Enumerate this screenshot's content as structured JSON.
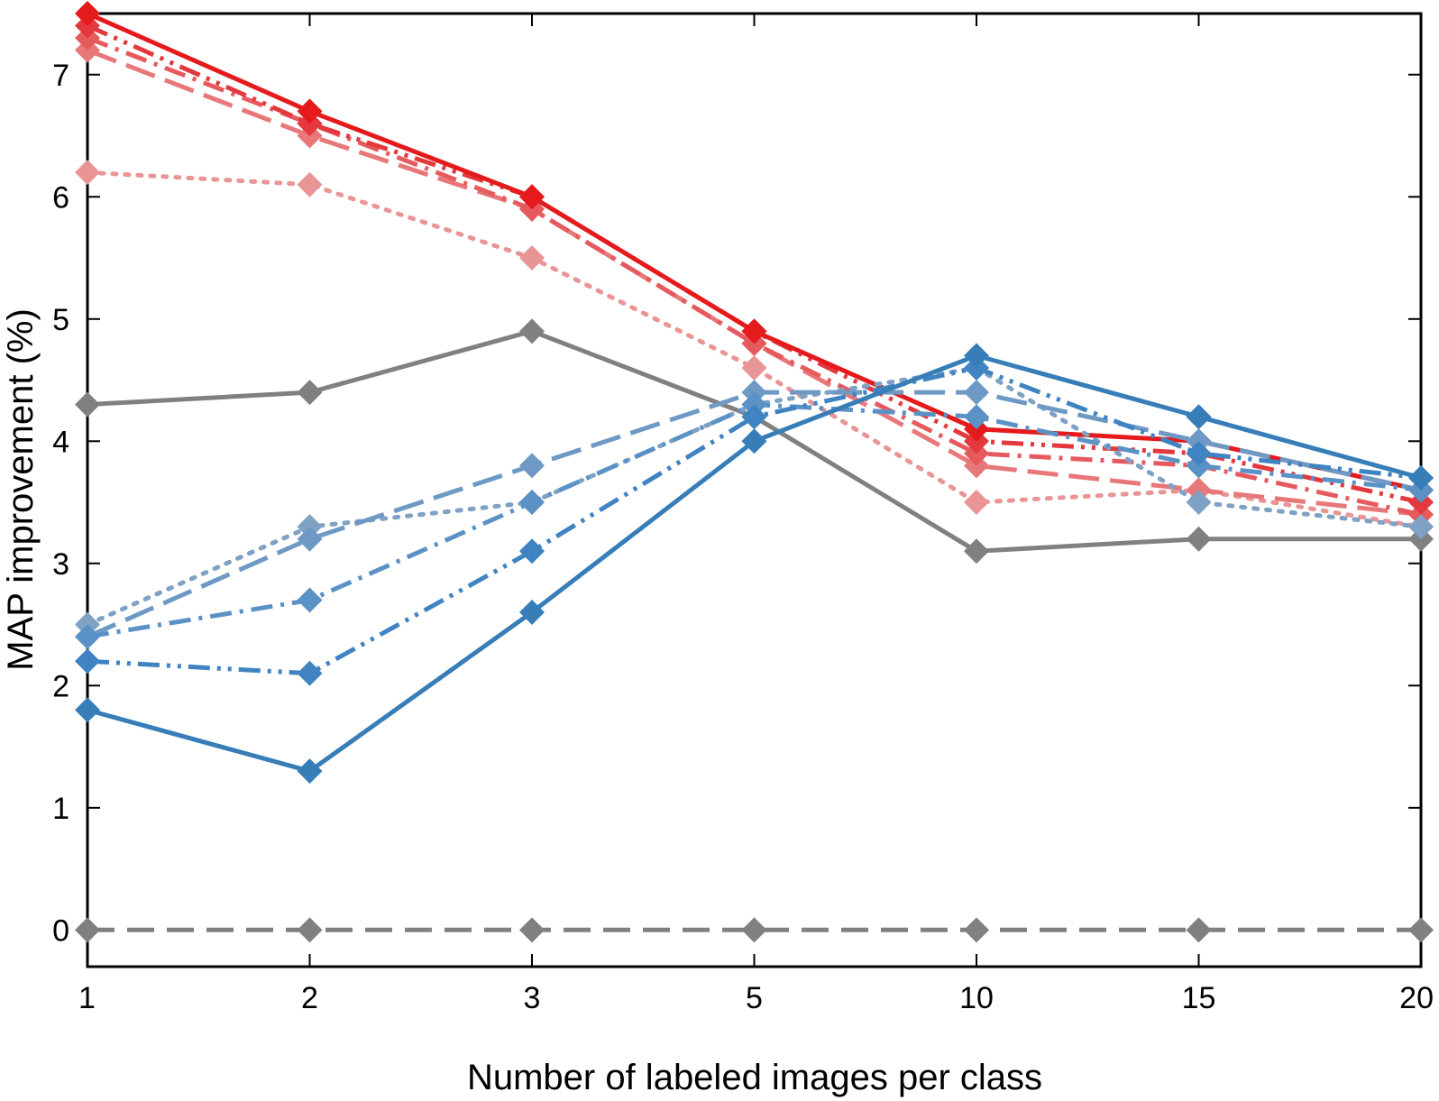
{
  "chart_data": {
    "type": "line",
    "title": "",
    "xlabel": "Number of labeled images per class",
    "ylabel": "MAP improvement (%)",
    "categories": [
      "1",
      "2",
      "3",
      "5",
      "10",
      "15",
      "20"
    ],
    "ylim": [
      -0.3,
      7.5
    ],
    "yticks": [
      0,
      1,
      2,
      3,
      4,
      5,
      6,
      7
    ],
    "grid": false,
    "legend": "none",
    "marker": "diamond",
    "series": [
      {
        "name": "gray solid",
        "color": "#808080",
        "dash": "solid",
        "values": [
          4.3,
          4.4,
          4.9,
          4.2,
          3.1,
          3.2,
          3.2
        ]
      },
      {
        "name": "gray dashed baseline",
        "color": "#808080",
        "dash": "dash",
        "values": [
          0,
          0,
          0,
          0,
          0,
          0,
          0
        ]
      },
      {
        "name": "red dotted",
        "color": "#E99595",
        "dash": "dot",
        "values": [
          6.2,
          6.1,
          5.5,
          4.6,
          3.5,
          3.6,
          3.3
        ]
      },
      {
        "name": "red long-dash light",
        "color": "#E8777A",
        "dash": "longdash",
        "values": [
          7.2,
          6.5,
          5.9,
          4.8,
          3.8,
          3.6,
          3.4
        ]
      },
      {
        "name": "red dash-dot",
        "color": "#E65A5E",
        "dash": "dashdot",
        "values": [
          7.3,
          6.6,
          5.9,
          4.8,
          3.9,
          3.8,
          3.4
        ]
      },
      {
        "name": "red dash-dot-dot",
        "color": "#E3383D",
        "dash": "dashdotdot",
        "values": [
          7.4,
          6.6,
          6.0,
          4.9,
          4.0,
          3.9,
          3.5
        ]
      },
      {
        "name": "red solid",
        "color": "#E41A1C",
        "dash": "solid",
        "values": [
          7.5,
          6.7,
          6.0,
          4.9,
          4.1,
          4.0,
          3.6
        ]
      },
      {
        "name": "blue dotted",
        "color": "#7FA1C4",
        "dash": "dot",
        "values": [
          2.5,
          3.3,
          3.5,
          4.3,
          4.6,
          3.5,
          3.3
        ]
      },
      {
        "name": "blue long-dash light",
        "color": "#6D99C4",
        "dash": "longdash",
        "values": [
          2.4,
          3.2,
          3.8,
          4.4,
          4.4,
          4.0,
          3.6
        ]
      },
      {
        "name": "blue dash-dot",
        "color": "#5B92C6",
        "dash": "dashdot",
        "values": [
          2.4,
          2.7,
          3.5,
          4.3,
          4.2,
          3.8,
          3.6
        ]
      },
      {
        "name": "blue dash-dot-dot",
        "color": "#3F83C2",
        "dash": "dashdotdot",
        "values": [
          2.2,
          2.1,
          3.1,
          4.2,
          4.6,
          3.9,
          3.7
        ]
      },
      {
        "name": "blue solid",
        "color": "#377EB8",
        "dash": "solid",
        "values": [
          1.8,
          1.3,
          2.6,
          4.0,
          4.7,
          4.2,
          3.7
        ]
      }
    ]
  }
}
